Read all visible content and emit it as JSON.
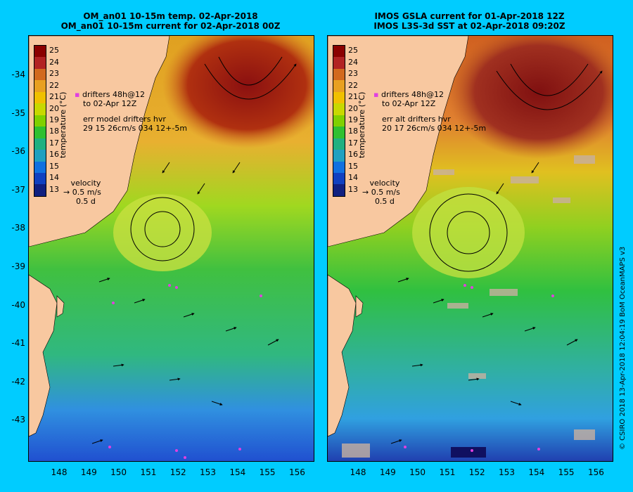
{
  "left_panel": {
    "title1": "OM_an01 10-15m temp. 02-Apr-2018",
    "title2": "OM_an01 10-15m current for 02-Apr-2018 00Z",
    "drifters1": "drifters 48h@12",
    "drifters2": "to 02-Apr 12Z",
    "err1": "err model drifters hvr",
    "err2": "29 15 26cm/s 034 12+-5m",
    "velocity_label": "velocity",
    "velocity_speed": "0.5 m/s",
    "velocity_time": "0.5 d"
  },
  "right_panel": {
    "title1": "IMOS GSLA current for 01-Apr-2018 12Z",
    "title2": "IMOS L3S-3d SST at 02-Apr-2018 09:20Z",
    "drifters1": "drifters 48h@12",
    "drifters2": "to 02-Apr 12Z",
    "err1": "err alt drifters hvr",
    "err2": "20 17 26cm/s 034 12+-5m",
    "velocity_label": "velocity",
    "velocity_speed": "0.5 m/s",
    "velocity_time": "0.5 d"
  },
  "colorbar": {
    "title": "temperature (°C)",
    "ticks": [
      "25",
      "24",
      "23",
      "22",
      "21",
      "20",
      "19",
      "18",
      "17",
      "16",
      "15",
      "14",
      "13"
    ],
    "colors": [
      "#8b0000",
      "#b22222",
      "#d2691e",
      "#e8a020",
      "#f0c000",
      "#c8d800",
      "#80d000",
      "#30c030",
      "#20b080",
      "#20a0c0",
      "#1070e0",
      "#1040c0",
      "#102080"
    ]
  },
  "axes": {
    "lat_ticks": [
      "-34",
      "-35",
      "-36",
      "-37",
      "-38",
      "-39",
      "-40",
      "-41",
      "-42",
      "-43"
    ],
    "lon_ticks": [
      "148",
      "149",
      "150",
      "151",
      "152",
      "153",
      "154",
      "155",
      "156"
    ]
  },
  "colors": {
    "background": "#00ccff",
    "land": "#f8c8a0",
    "drifter": "#e040e0"
  },
  "credit": "© CSIRO 2018   13-Apr-2018 12:04:19 BoM OceanMAPS v3"
}
